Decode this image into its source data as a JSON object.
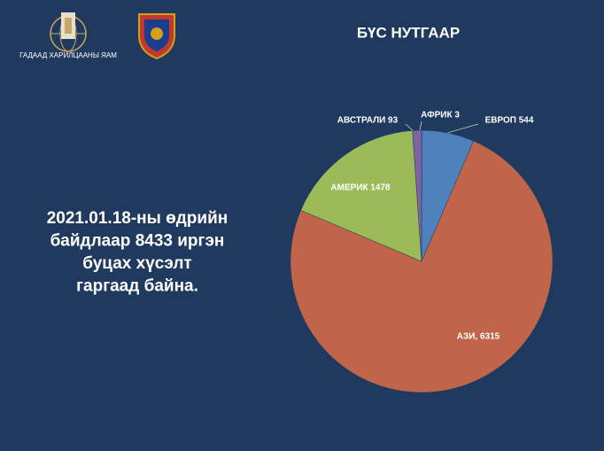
{
  "header": {
    "ministry": "ГАДААД ХАРИЛЦААНЫ ЯАМ"
  },
  "note_lines": [
    "2021.01.18-ны өдрийн",
    "байдлаар 8433 иргэн",
    "буцах хүсэлт",
    "гаргаад байна."
  ],
  "chart_data": {
    "type": "pie",
    "title": "БҮС НУТГААР",
    "values": [
      3,
      544,
      6315,
      1478,
      93
    ],
    "value_labels": [
      "АФРИК 3",
      "ЕВРОП 544",
      "АЗИ, 6315",
      "АМЕРИК 1478",
      "АВСТРАЛИ 93"
    ],
    "colors": [
      "#4bacc6",
      "#4f81bd",
      "#c0654a",
      "#9bbb59",
      "#8064a2"
    ]
  }
}
